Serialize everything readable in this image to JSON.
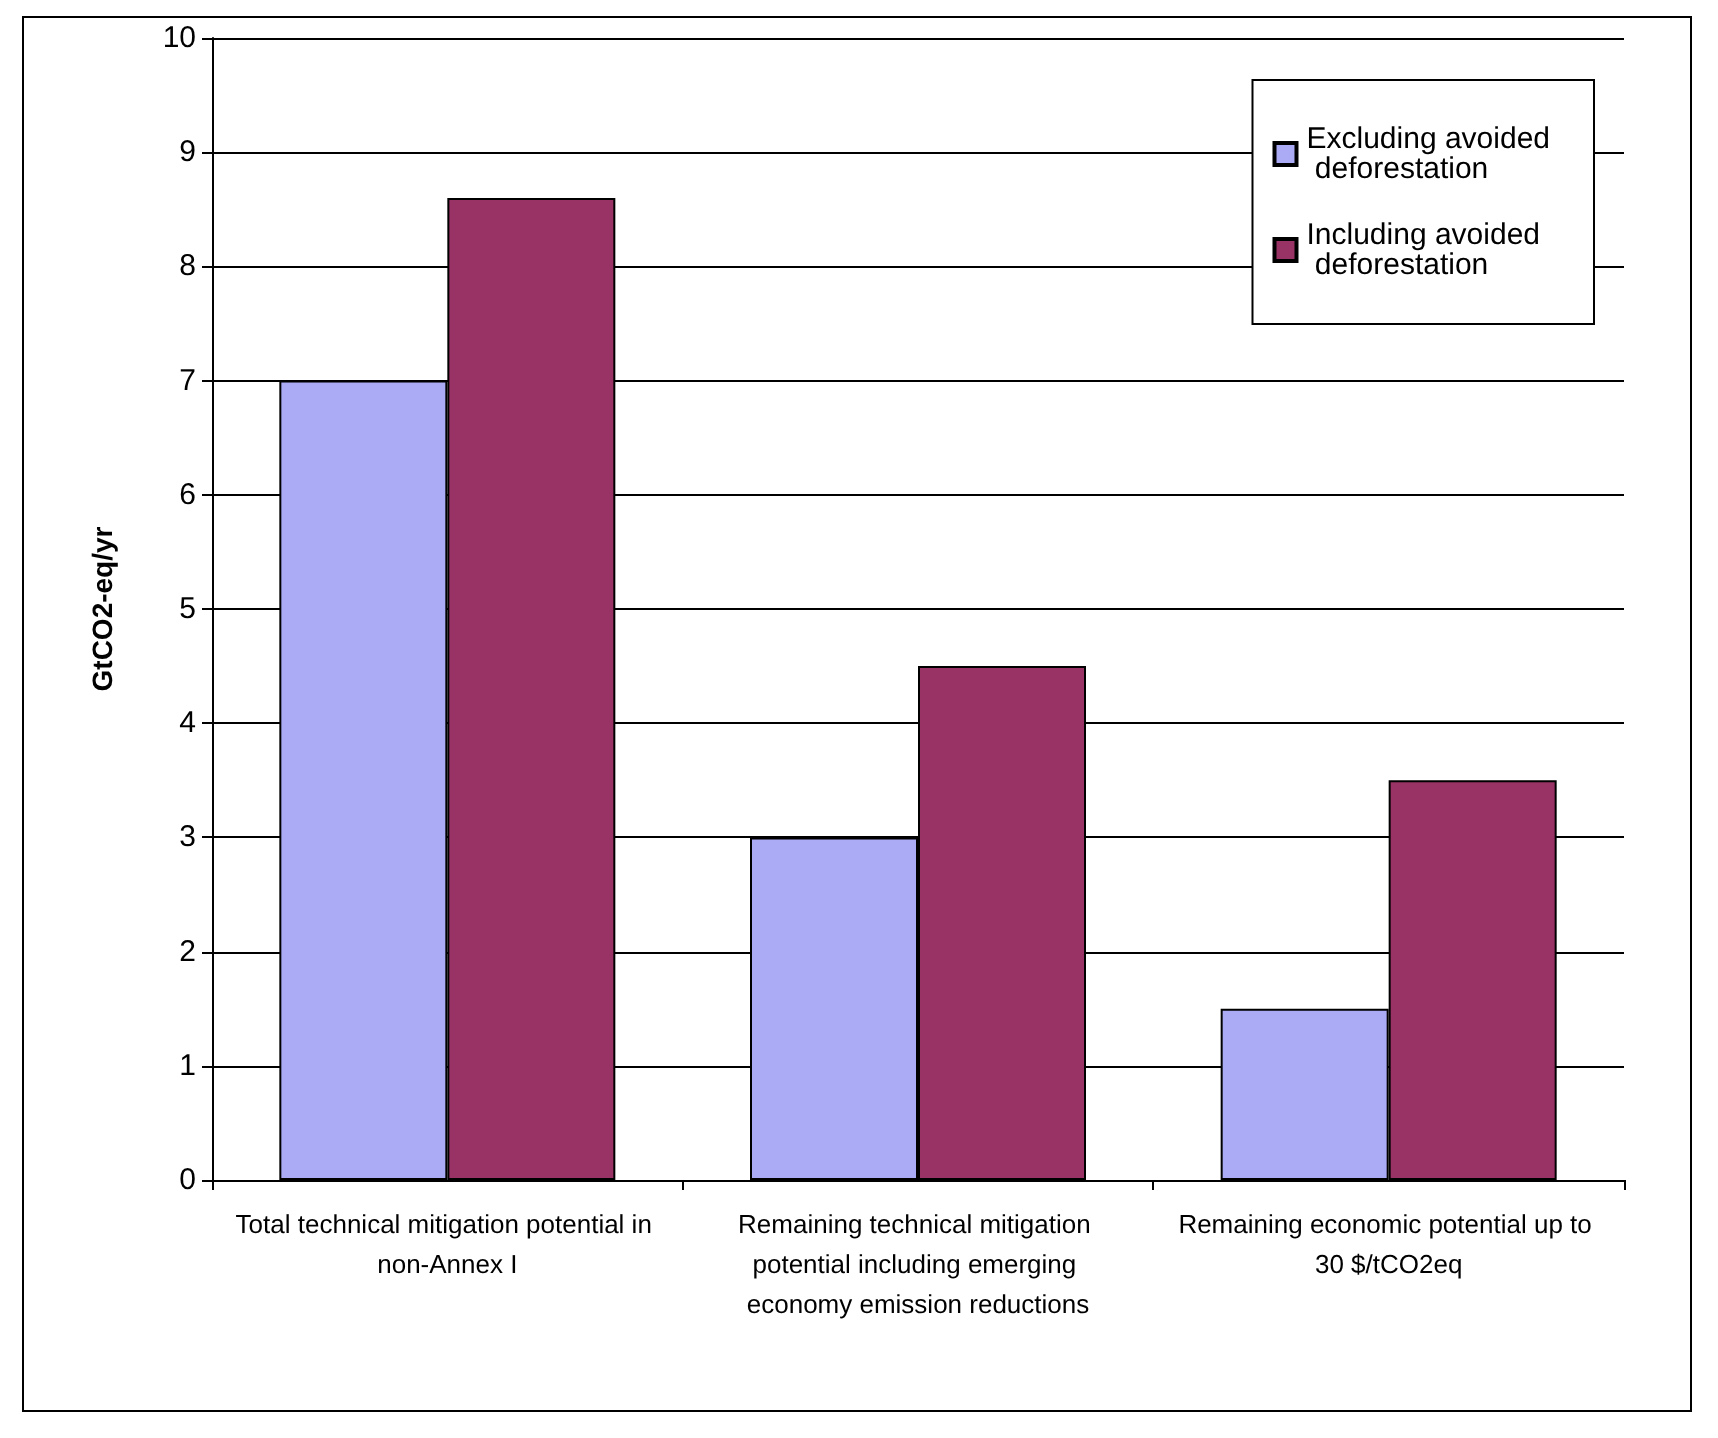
{
  "chart_data": {
    "type": "bar",
    "ylabel": "GtCO2-eq/yr",
    "categories": [
      "Total technical mitigation potential in non-Annex I",
      "Remaining technical mitigation potential including emerging economy emission reductions",
      "Remaining economic potential up to 30 $/tCO2eq"
    ],
    "series": [
      {
        "name": "Excluding avoided deforestation",
        "color": "#aaaaf5",
        "values": [
          7.0,
          3.0,
          1.5
        ]
      },
      {
        "name": "Including avoided deforestation",
        "color": "#993366",
        "values": [
          8.6,
          4.5,
          3.5
        ]
      }
    ],
    "ylim": [
      0,
      10
    ],
    "yticks": [
      0,
      1,
      2,
      3,
      4,
      5,
      6,
      7,
      8,
      9,
      10
    ],
    "grid": "y",
    "legend": "top right"
  }
}
